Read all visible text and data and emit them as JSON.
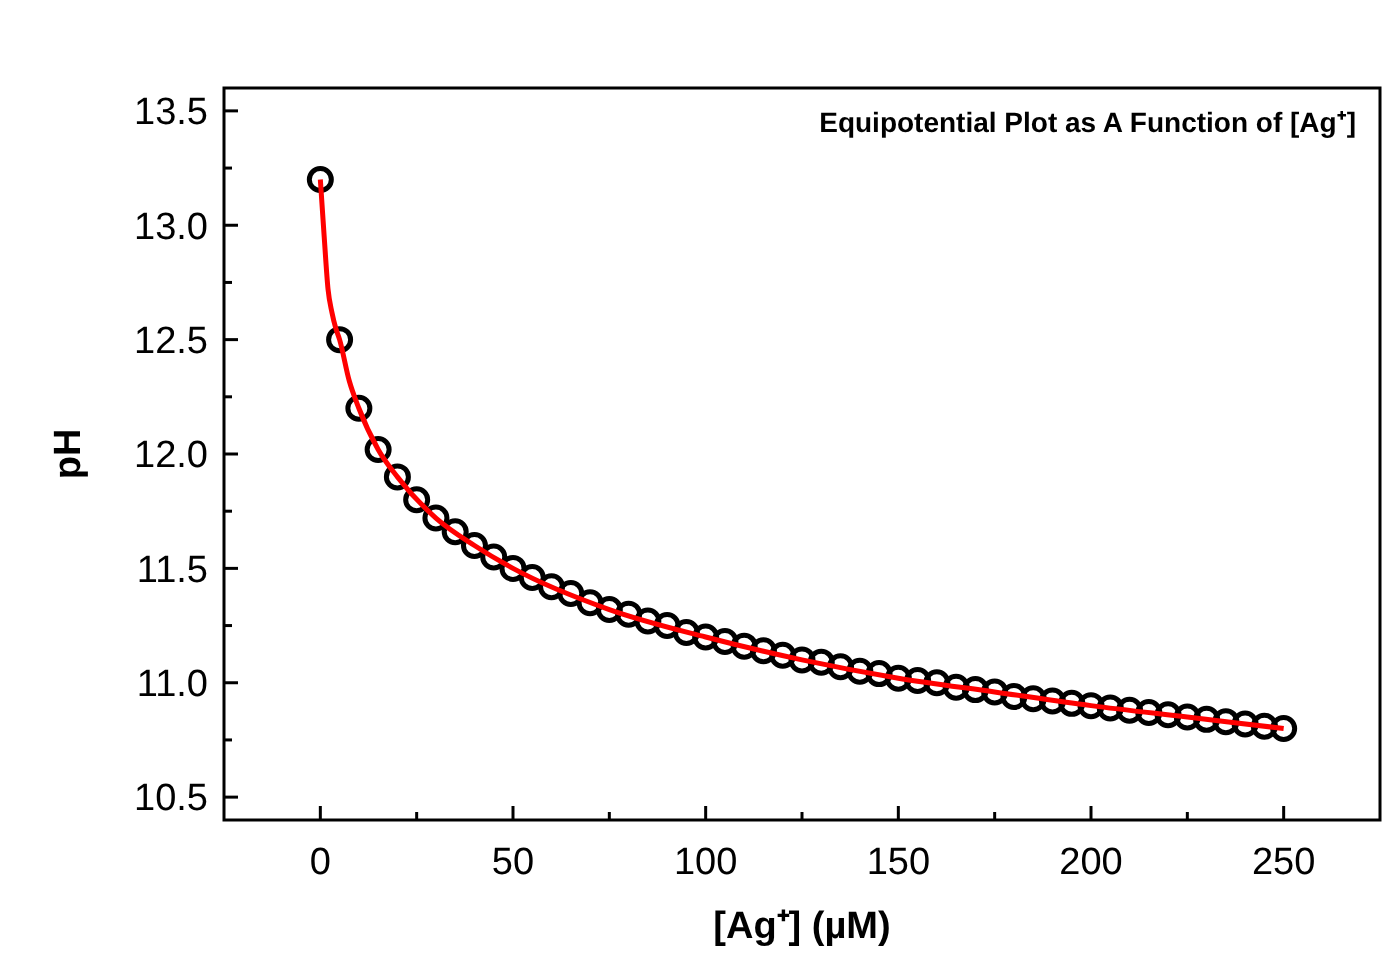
{
  "chart_data": {
    "type": "scatter",
    "title": "Equipotential Plot as A Function of [Ag⁺]",
    "xlabel": "[Ag⁺] (µM)",
    "ylabel": "pH",
    "xlim": [
      -25,
      275
    ],
    "xticks": [
      0,
      {
        "value": 25,
        "label": null
      },
      50,
      {
        "value": 75,
        "label": null
      },
      100,
      {
        "value": 125,
        "label": null
      },
      150,
      {
        "value": 175,
        "label": null
      },
      200,
      {
        "value": 225,
        "label": null
      },
      250
    ],
    "ylim": [
      10.4,
      13.6
    ],
    "yticks": [
      {
        "value": 10.5,
        "label": "10.5"
      },
      {
        "value": 10.75,
        "label": null
      },
      {
        "value": 11,
        "label": "11.0"
      },
      {
        "value": 11.25,
        "label": null
      },
      {
        "value": 11.5,
        "label": "11.5"
      },
      {
        "value": 11.75,
        "label": null
      },
      {
        "value": 12,
        "label": "12.0"
      },
      {
        "value": 12.25,
        "label": null
      },
      {
        "value": 12.5,
        "label": "12.5"
      },
      {
        "value": 12.75,
        "label": null
      },
      {
        "value": 13,
        "label": "13.0"
      },
      {
        "value": 13.25,
        "label": null
      },
      {
        "value": 13.5,
        "label": "13.5"
      }
    ],
    "grid": false,
    "series": [
      {
        "marker": "circle",
        "color": "#000000",
        "x": [
          0,
          5,
          10,
          15,
          20,
          25,
          30,
          35,
          40,
          45,
          50,
          55,
          60,
          65,
          70,
          75,
          80,
          85,
          90,
          95,
          100,
          105,
          110,
          115,
          120,
          125,
          130,
          135,
          140,
          145,
          150,
          155,
          160,
          165,
          170,
          175,
          180,
          185,
          190,
          195,
          200,
          205,
          210,
          215,
          220,
          225,
          230,
          235,
          240,
          245,
          250
        ],
        "values": [
          13.2,
          12.5,
          12.2,
          12.02,
          11.9,
          11.8,
          11.72,
          11.66,
          11.6,
          11.55,
          11.5,
          11.46,
          11.42,
          11.39,
          11.35,
          11.32,
          11.3,
          11.27,
          11.25,
          11.22,
          11.2,
          11.18,
          11.16,
          11.14,
          11.12,
          11.1,
          11.09,
          11.07,
          11.05,
          11.04,
          11.02,
          11.01,
          11.0,
          10.98,
          10.97,
          10.96,
          10.94,
          10.93,
          10.92,
          10.91,
          10.9,
          10.89,
          10.88,
          10.87,
          10.86,
          10.85,
          10.84,
          10.83,
          10.82,
          10.81,
          10.8
        ]
      },
      {
        "type": "line",
        "color": "#ff0000",
        "line_style": "solid",
        "x": [
          0,
          1,
          2,
          3,
          4,
          5,
          7.5,
          10,
          15,
          20,
          30,
          40,
          50,
          75,
          100,
          125,
          150,
          175,
          200,
          225,
          250
        ],
        "values": [
          13.2,
          12.95,
          12.72,
          12.62,
          12.55,
          12.5,
          12.32,
          12.2,
          12.02,
          11.9,
          11.72,
          11.6,
          11.5,
          11.32,
          11.2,
          11.1,
          11.02,
          10.96,
          10.9,
          10.85,
          10.8
        ]
      }
    ]
  }
}
